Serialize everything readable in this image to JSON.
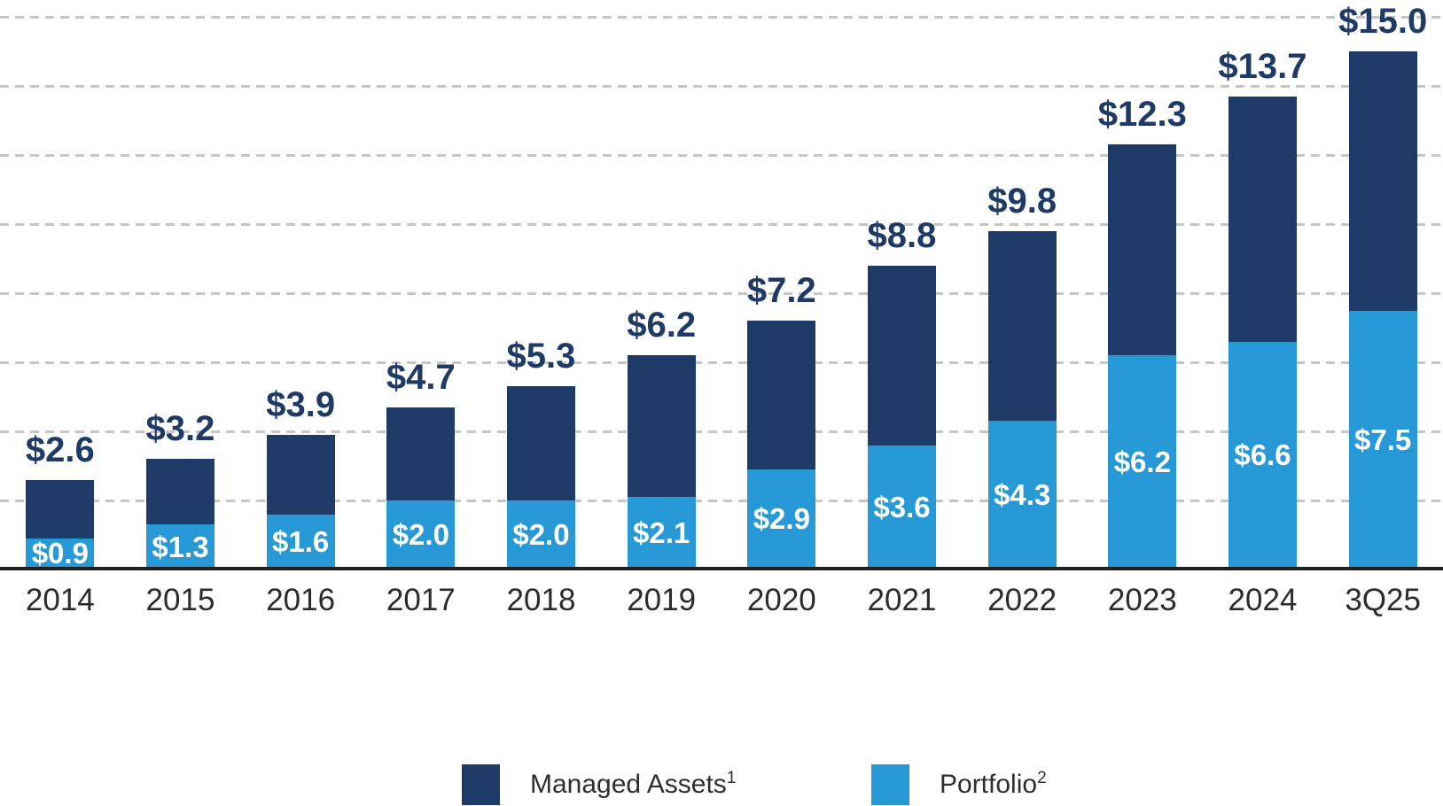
{
  "chart_data": {
    "type": "bar",
    "stacked": true,
    "title": "",
    "xlabel": "",
    "ylabel": "",
    "categories": [
      "2014",
      "2015",
      "2016",
      "2017",
      "2018",
      "2019",
      "2020",
      "2021",
      "2022",
      "2023",
      "2024",
      "3Q25"
    ],
    "series": [
      {
        "name": "Managed Assets",
        "legend_superscript": "1",
        "color": "#1E3A67",
        "role": "stacked total labeled above each bar (dark segment = total minus portfolio)",
        "values": [
          2.6,
          3.2,
          3.9,
          4.7,
          5.3,
          6.2,
          7.2,
          8.8,
          9.8,
          12.3,
          13.7,
          15.0
        ],
        "labels": [
          "$2.6",
          "$3.2",
          "$3.9",
          "$4.7",
          "$5.3",
          "$6.2",
          "$7.2",
          "$8.8",
          "$9.8",
          "$12.3",
          "$13.7",
          "$15.0"
        ]
      },
      {
        "name": "Portfolio",
        "legend_superscript": "2",
        "color": "#2799D6",
        "role": "bottom light-blue segment with white label inside",
        "values": [
          0.9,
          1.3,
          1.6,
          2.0,
          2.0,
          2.1,
          2.9,
          3.6,
          4.3,
          6.2,
          6.6,
          7.5
        ],
        "labels": [
          "$0.9",
          "$1.3",
          "$1.6",
          "$2.0",
          "$2.0",
          "$2.1",
          "$2.9",
          "$3.6",
          "$4.3",
          "$6.2",
          "$6.6",
          "$7.5"
        ]
      }
    ],
    "ylim": [
      0,
      16
    ],
    "gridlines": {
      "step": 2,
      "style": "dashed",
      "color": "#C6C6C6",
      "orientation": "horizontal"
    },
    "axis_line_color": "#1F1F1F",
    "value_label_color": "#1E3A67",
    "inner_label_color": "#FFFFFF",
    "x_tick_color": "#2B2B2B",
    "legend_position": "bottom",
    "y_axis_ticks_visible": false
  }
}
